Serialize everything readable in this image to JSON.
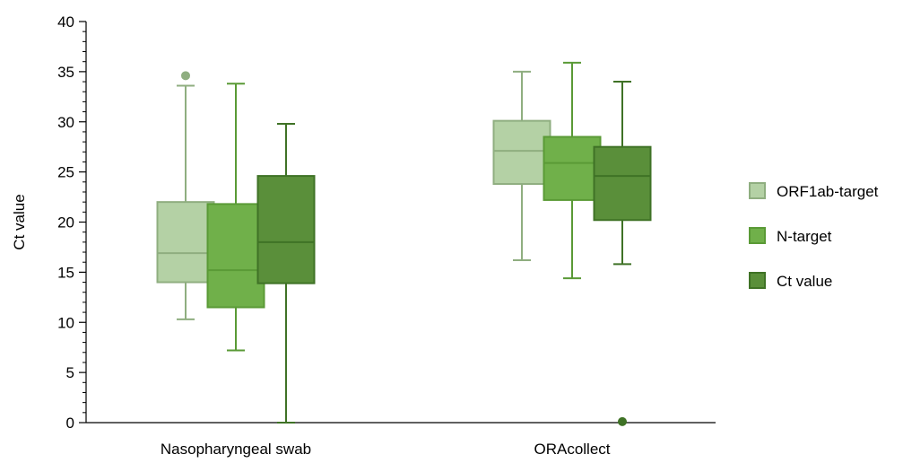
{
  "chart_data": {
    "type": "boxplot",
    "title": "",
    "xlabel": "",
    "ylabel": "Ct value",
    "ylim": [
      0,
      40
    ],
    "yticks": [
      0,
      5,
      10,
      15,
      20,
      25,
      30,
      35,
      40
    ],
    "grid": false,
    "legend_position": "right",
    "categories": [
      "Nasopharyngeal swab",
      "ORAcollect"
    ],
    "series": [
      {
        "name": "ORF1ab-target",
        "color": "#b4d1a5",
        "stroke": "#8fae80",
        "boxes": [
          {
            "min": 10.3,
            "q1": 14.0,
            "median": 16.9,
            "q3": 22.0,
            "max": 33.6,
            "outliers": [
              34.6
            ]
          },
          {
            "min": 16.2,
            "q1": 23.8,
            "median": 27.1,
            "q3": 30.1,
            "max": 35.0,
            "outliers": []
          }
        ]
      },
      {
        "name": "N-target",
        "color": "#70b04a",
        "stroke": "#5a9a36",
        "boxes": [
          {
            "min": 7.2,
            "q1": 11.5,
            "median": 15.2,
            "q3": 21.8,
            "max": 33.8,
            "outliers": []
          },
          {
            "min": 14.4,
            "q1": 22.2,
            "median": 25.9,
            "q3": 28.5,
            "max": 35.9,
            "outliers": []
          }
        ]
      },
      {
        "name": "Ct value",
        "color": "#5a8f3a",
        "stroke": "#3f7226",
        "boxes": [
          {
            "min": 0.0,
            "q1": 13.9,
            "median": 18.0,
            "q3": 24.6,
            "max": 29.8,
            "outliers": []
          },
          {
            "min": 15.8,
            "q1": 20.2,
            "median": 24.6,
            "q3": 27.5,
            "max": 34.0,
            "outliers": [
              0.1
            ]
          }
        ]
      }
    ]
  }
}
